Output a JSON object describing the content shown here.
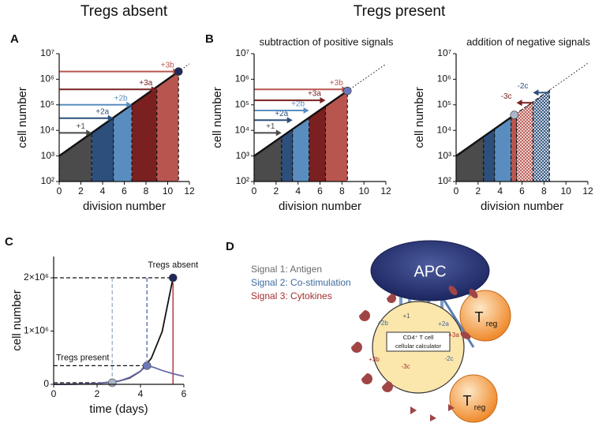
{
  "headings": {
    "absent": "Tregs absent",
    "present": "Tregs present"
  },
  "chart_data": [
    {
      "type": "division",
      "panel": "A",
      "xlabel": "division number",
      "ylabel": "cell number",
      "log_y": true,
      "xlim": [
        0,
        12
      ],
      "ylim": [
        100,
        10000000
      ],
      "xticks": [
        0,
        2,
        4,
        6,
        8,
        10,
        12
      ],
      "yticks": [
        {
          "value": 100,
          "label": "10²"
        },
        {
          "value": 1000,
          "label": "10³"
        },
        {
          "value": 10000,
          "label": "10⁴"
        },
        {
          "value": 100000,
          "label": "10⁵"
        },
        {
          "value": 1000000,
          "label": "10⁶"
        },
        {
          "value": 10000000,
          "label": "10⁷"
        }
      ],
      "x": [
        0,
        11
      ],
      "values": [
        1000,
        2000000
      ],
      "color": "#111111",
      "point_color": "#1f2a5a",
      "regions": [
        {
          "x": [
            0,
            3
          ],
          "color": "#4b4b4b"
        },
        {
          "x": [
            3,
            5
          ],
          "color": "#2c4f7c"
        },
        {
          "x": [
            5,
            6.7
          ],
          "color": "#5a8dbf"
        },
        {
          "x": [
            6.7,
            9
          ],
          "color": "#7a2020"
        },
        {
          "x": [
            9,
            11
          ],
          "color": "#b9554f"
        }
      ],
      "arrows": [
        {
          "label": "+1",
          "y": 8000,
          "x": [
            0,
            3
          ],
          "color": "#4b4b4b"
        },
        {
          "label": "+2a",
          "y": 30000,
          "x": [
            0,
            5
          ],
          "color": "#2c4f7c"
        },
        {
          "label": "+2b",
          "y": 100000,
          "x": [
            0,
            6.7
          ],
          "color": "#5a8dbf"
        },
        {
          "label": "+3a",
          "y": 400000,
          "x": [
            0,
            9
          ],
          "color": "#7a2020"
        },
        {
          "label": "+3b",
          "y": 2000000,
          "x": [
            0,
            11
          ],
          "color": "#b9554f"
        }
      ]
    },
    {
      "type": "division",
      "panel": "B",
      "title": "subtraction of positive signals",
      "xlabel": "division number",
      "ylabel": "cell number",
      "log_y": true,
      "xlim": [
        0,
        12
      ],
      "ylim": [
        100,
        10000000
      ],
      "xticks": [
        0,
        2,
        4,
        6,
        8,
        10,
        12
      ],
      "yticks": [
        {
          "value": 100,
          "label": "10²"
        },
        {
          "value": 1000,
          "label": "10³"
        },
        {
          "value": 10000,
          "label": "10⁴"
        },
        {
          "value": 100000,
          "label": "10⁵"
        },
        {
          "value": 1000000,
          "label": "10⁶"
        },
        {
          "value": 10000000,
          "label": "10⁷"
        }
      ],
      "x": [
        0,
        8.5
      ],
      "values": [
        1000,
        350000
      ],
      "color": "#111111",
      "point_color": "#6b78b8",
      "regions": [
        {
          "x": [
            0,
            2.5
          ],
          "color": "#4b4b4b"
        },
        {
          "x": [
            2.5,
            3.5
          ],
          "color": "#2c4f7c"
        },
        {
          "x": [
            3.5,
            5
          ],
          "color": "#5a8dbf"
        },
        {
          "x": [
            5,
            6.5
          ],
          "color": "#7a2020"
        },
        {
          "x": [
            6.5,
            8.5
          ],
          "color": "#b9554f"
        }
      ],
      "arrows": [
        {
          "label": "+1",
          "y": 8000,
          "x": [
            0,
            2.5
          ],
          "color": "#4b4b4b"
        },
        {
          "label": "+2a",
          "y": 25000,
          "x": [
            0,
            3.5
          ],
          "color": "#2c4f7c"
        },
        {
          "label": "+2b",
          "y": 60000,
          "x": [
            0,
            5
          ],
          "color": "#5a8dbf"
        },
        {
          "label": "+3a",
          "y": 150000,
          "x": [
            0,
            6.5
          ],
          "color": "#7a2020"
        },
        {
          "label": "+3b",
          "y": 400000,
          "x": [
            0,
            8.5
          ],
          "color": "#b9554f"
        }
      ]
    },
    {
      "type": "division",
      "title": "addition of negative signals",
      "xlabel": "division number",
      "ylabel": "cell number",
      "log_y": true,
      "xlim": [
        0,
        12
      ],
      "ylim": [
        100,
        10000000
      ],
      "xticks": [
        0,
        2,
        4,
        6,
        8,
        10,
        12
      ],
      "yticks": [
        {
          "value": 100,
          "label": "10²"
        },
        {
          "value": 1000,
          "label": "10³"
        },
        {
          "value": 10000,
          "label": "10⁴"
        },
        {
          "value": 100000,
          "label": "10⁵"
        },
        {
          "value": 1000000,
          "label": "10⁶"
        },
        {
          "value": 10000000,
          "label": "10⁷"
        }
      ],
      "x": [
        0,
        5.3
      ],
      "values": [
        1000,
        40000
      ],
      "color": "#111111",
      "point_color": "#aab7cc",
      "regions": [
        {
          "x": [
            0,
            2.5
          ],
          "color": "#4b4b4b"
        },
        {
          "x": [
            2.5,
            3.5
          ],
          "color": "#2c4f7c"
        },
        {
          "x": [
            3.5,
            5
          ],
          "color": "#5a8dbf"
        },
        {
          "x": [
            5,
            5.5
          ],
          "color": "#b9554f"
        },
        {
          "x": [
            5.5,
            7
          ],
          "color": "#b9554f",
          "pattern": "hatch"
        },
        {
          "x": [
            7,
            8.5
          ],
          "color": "#2c4f7c",
          "pattern": "hatch"
        }
      ],
      "arrows": [
        {
          "label": "-3c",
          "y": 120000,
          "x": [
            7,
            5.5
          ],
          "color": "#7a2020"
        },
        {
          "label": "-2c",
          "y": 300000,
          "x": [
            8.5,
            7
          ],
          "color": "#2c4f7c"
        }
      ]
    },
    {
      "type": "line",
      "panel": "C",
      "xlabel": "time (days)",
      "ylabel": "cell number",
      "xlim": [
        0,
        6
      ],
      "ylim": [
        0,
        2400000
      ],
      "xticks": [
        0,
        2,
        4,
        6
      ],
      "yticks": [
        0,
        {
          "value": 1000000,
          "label": "1×10⁶"
        },
        {
          "value": 2000000,
          "label": "2×10⁶"
        }
      ],
      "series": [
        {
          "color": "#111111",
          "x": [
            0,
            1,
            2,
            3,
            3.5,
            4,
            4.5,
            5,
            5.5
          ],
          "values": [
            900,
            3700,
            15000,
            60000,
            120000,
            245000,
            490000,
            990000,
            2000000
          ]
        },
        {
          "color": "#6b6aa8",
          "x": [
            0,
            1,
            2,
            3,
            3.5,
            4,
            4.3,
            4.6,
            5,
            5.5,
            6
          ],
          "values": [
            900,
            3600,
            15000,
            60000,
            130000,
            250000,
            350000,
            320000,
            260000,
            200000,
            150000
          ]
        }
      ],
      "markers": [
        {
          "label": "Tregs absent",
          "x": 5.5,
          "y": 2000000,
          "color": "#1f2a5a"
        },
        {
          "label": "Tregs present",
          "x": 4.3,
          "y": 350000,
          "color": "#6b78b8"
        },
        {
          "x": 2.7,
          "y": 30000,
          "color": "#aab7cc"
        }
      ]
    }
  ],
  "diagram": {
    "panel": "D",
    "legend": [
      "Signal 1: Antigen",
      "Signal 2: Co-stimulation",
      "Signal 3: Cytokines"
    ],
    "apc": "APC",
    "tregs": [
      {
        "main": "T",
        "sub": "reg"
      },
      {
        "main": "T",
        "sub": "reg"
      }
    ],
    "cell": [
      "CD4⁺ T cell",
      "cellular calculator"
    ],
    "signals": [
      "+2b",
      "+1",
      "+2a",
      "+3a",
      "+3b",
      "-3c",
      "-2c"
    ]
  }
}
